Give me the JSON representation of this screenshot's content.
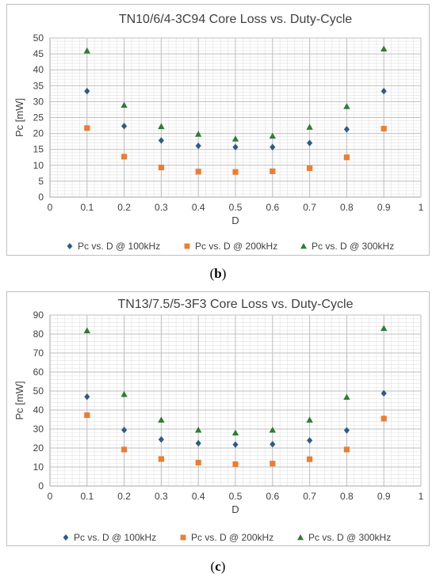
{
  "chart_data": [
    {
      "type": "scatter",
      "title": "TN10/6/4-3C94 Core Loss vs. Duty-Cycle",
      "xlabel": "D",
      "ylabel": "Pc [mW]",
      "xlim": [
        0,
        1
      ],
      "ylim": [
        0,
        50
      ],
      "xticks": [
        "0",
        "0.1",
        "0.2",
        "0.3",
        "0.4",
        "0.5",
        "0.6",
        "0.7",
        "0.8",
        "0.9",
        "1"
      ],
      "yticks": [
        "0",
        "5",
        "10",
        "15",
        "20",
        "25",
        "30",
        "35",
        "40",
        "45",
        "50"
      ],
      "grid": true,
      "legend_position": "bottom",
      "x": [
        0.1,
        0.2,
        0.3,
        0.4,
        0.5,
        0.6,
        0.7,
        0.8,
        0.9
      ],
      "series": [
        {
          "name": "Pc vs. D @ 100kHz",
          "marker": "diamond",
          "color": "#2e5b87",
          "values": [
            33.3,
            22.3,
            17.8,
            16.1,
            15.7,
            15.7,
            17.0,
            21.3,
            33.3
          ]
        },
        {
          "name": "Pc vs. D @ 200kHz",
          "marker": "square",
          "color": "#ed7d31",
          "values": [
            21.7,
            12.7,
            9.3,
            8.0,
            7.9,
            8.1,
            9.1,
            12.5,
            21.5
          ]
        },
        {
          "name": "Pc vs. D @ 300kHz",
          "marker": "triangle",
          "color": "#2e7d32",
          "values": [
            46.0,
            28.9,
            22.2,
            19.8,
            18.3,
            19.2,
            22.0,
            28.5,
            46.6
          ]
        }
      ]
    },
    {
      "type": "scatter",
      "title": "TN13/7.5/5-3F3 Core Loss vs. Duty-Cycle",
      "xlabel": "D",
      "ylabel": "Pc [mW]",
      "xlim": [
        0,
        1
      ],
      "ylim": [
        0,
        90
      ],
      "xticks": [
        "0",
        "0.1",
        "0.2",
        "0.3",
        "0.4",
        "0.5",
        "0.6",
        "0.7",
        "0.8",
        "0.9",
        "1"
      ],
      "yticks": [
        "0",
        "10",
        "20",
        "30",
        "40",
        "50",
        "60",
        "70",
        "80",
        "90"
      ],
      "grid": true,
      "legend_position": "bottom",
      "x": [
        0.1,
        0.2,
        0.3,
        0.4,
        0.5,
        0.6,
        0.7,
        0.8,
        0.9
      ],
      "series": [
        {
          "name": "Pc vs. D @ 100kHz",
          "marker": "diamond",
          "color": "#2e5b87",
          "values": [
            47.0,
            29.5,
            24.5,
            22.5,
            21.8,
            22.0,
            24.0,
            29.3,
            48.8
          ]
        },
        {
          "name": "Pc vs. D @ 200kHz",
          "marker": "square",
          "color": "#ed7d31",
          "values": [
            37.3,
            19.2,
            14.2,
            12.3,
            11.5,
            11.8,
            14.1,
            19.2,
            35.5
          ]
        },
        {
          "name": "Pc vs. D @ 300kHz",
          "marker": "triangle",
          "color": "#2e7d32",
          "values": [
            81.8,
            48.3,
            34.8,
            29.5,
            28.0,
            29.5,
            34.8,
            46.8,
            83.0
          ]
        }
      ]
    }
  ],
  "captions": {
    "b": "b",
    "c": "c"
  }
}
